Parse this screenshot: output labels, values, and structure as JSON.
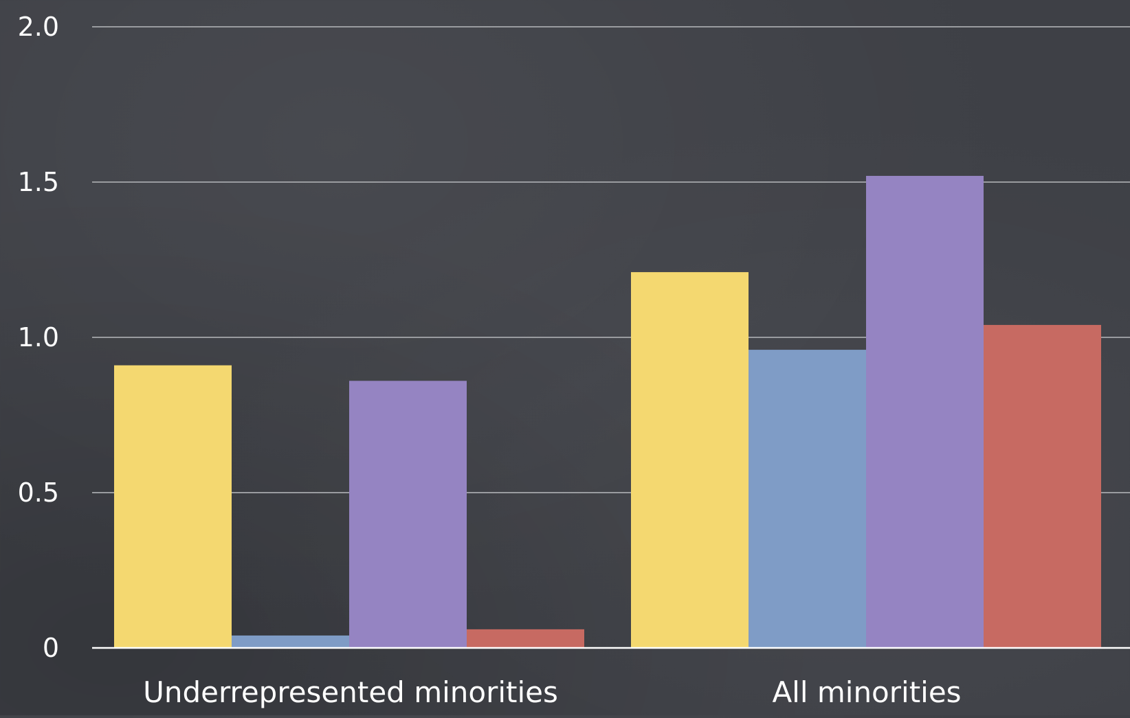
{
  "chart_data": {
    "type": "bar",
    "categories": [
      "Underrepresented minorities",
      "All minorities"
    ],
    "series": [
      {
        "values": [
          0.91,
          1.21
        ]
      },
      {
        "values": [
          0.04,
          0.96
        ]
      },
      {
        "values": [
          0.86,
          1.52
        ]
      },
      {
        "values": [
          0.06,
          1.04
        ]
      }
    ],
    "colors": [
      "#f4d870",
      "#7f9cc6",
      "#9584c2",
      "#c76a62"
    ],
    "ylim": [
      0,
      2.0
    ],
    "yticks": [
      "0",
      "0.5",
      "1.0",
      "1.5",
      "2.0"
    ],
    "ytick_values": [
      0,
      0.5,
      1.0,
      1.5,
      2.0
    ],
    "grid": true,
    "title": "",
    "xlabel": "",
    "ylabel": ""
  }
}
